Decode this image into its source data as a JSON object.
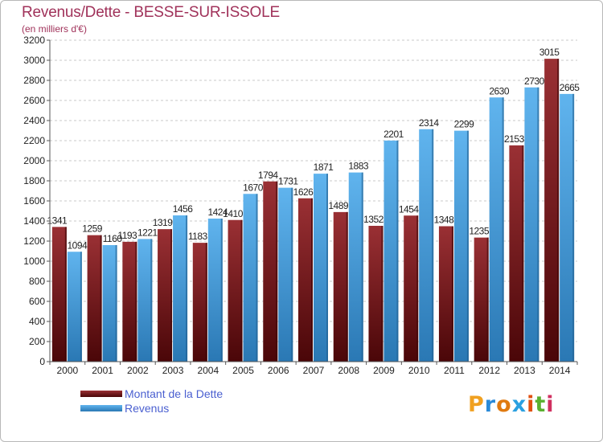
{
  "header": {
    "title": "Revenus/Dette - BESSE-SUR-ISSOLE",
    "subtitle": "(en milliers d'€)"
  },
  "colors": {
    "dette": "#7a1a1e",
    "revenus": "#4aa2e0",
    "grid": "#c8c8c8",
    "title": "#a0325a",
    "legend_text": "#4a5fd0"
  },
  "chart_data": {
    "type": "bar",
    "title": "Revenus/Dette - BESSE-SUR-ISSOLE",
    "subtitle": "(en milliers d'€)",
    "categories": [
      "2000",
      "2001",
      "2002",
      "2003",
      "2004",
      "2005",
      "2006",
      "2007",
      "2008",
      "2009",
      "2010",
      "2011",
      "2012",
      "2013",
      "2014"
    ],
    "series": [
      {
        "name": "Montant de la Dette",
        "values": [
          1341,
          1259,
          1193,
          1319,
          1183,
          1410,
          1794,
          1626,
          1489,
          1352,
          1454,
          1348,
          1235,
          2153,
          3015
        ]
      },
      {
        "name": "Revenus",
        "values": [
          1094,
          1160,
          1221,
          1456,
          1424,
          1670,
          1731,
          1871,
          1883,
          2201,
          2314,
          2299,
          2630,
          2730,
          2665
        ]
      }
    ],
    "ylim": [
      0,
      3200
    ],
    "yticks": [
      0,
      200,
      400,
      600,
      800,
      1000,
      1200,
      1400,
      1600,
      1800,
      2000,
      2200,
      2400,
      2600,
      2800,
      3000,
      3200
    ],
    "grid": true,
    "legend_position": "bottom-left"
  },
  "legend": {
    "items": [
      {
        "label": "Montant de la Dette",
        "color": "#7a1a1e"
      },
      {
        "label": "Revenus",
        "color": "#4aa2e0"
      }
    ]
  },
  "logo": {
    "text": "Proxiti"
  }
}
